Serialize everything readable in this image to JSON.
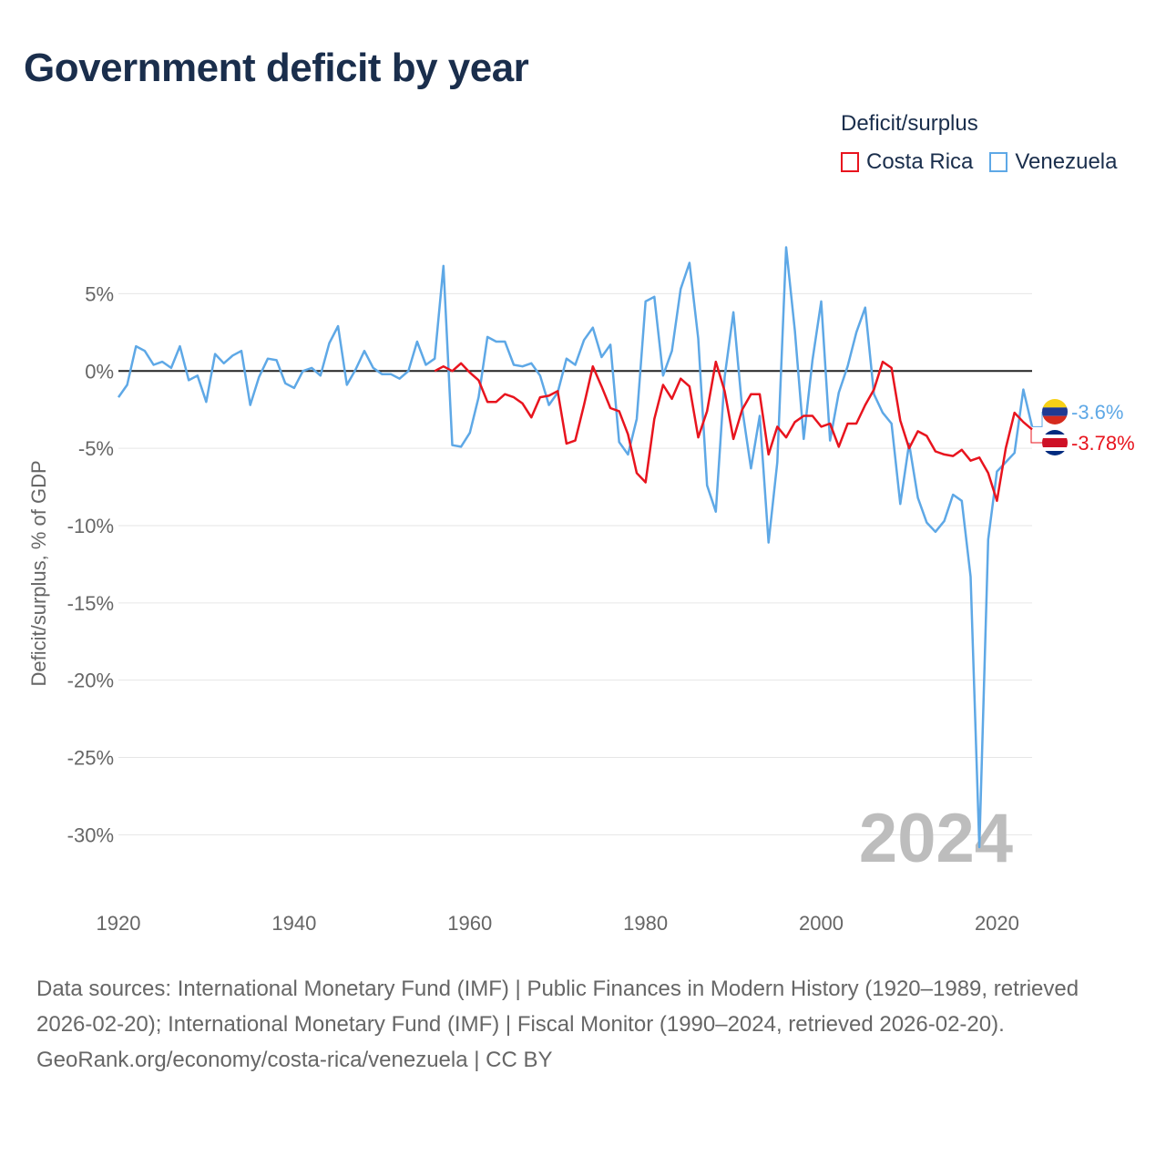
{
  "title": "Government deficit by year",
  "legend": {
    "title": "Deficit/surplus",
    "items": [
      {
        "name": "Costa Rica",
        "color": "#e8141e"
      },
      {
        "name": "Venezuela",
        "color": "#5ea8e6"
      }
    ]
  },
  "footer": {
    "sources": "Data sources: International Monetary Fund (IMF) | Public Finances in Modern History (1920–1989, retrieved 2026-02-20); International Monetary Fund (IMF) | Fiscal Monitor (1990–2024, retrieved 2026-02-20).",
    "credit": "GeoRank.org/economy/costa-rica/venezuela | CC BY"
  },
  "chart_data": {
    "type": "line",
    "title": "Government deficit by year",
    "xlabel": "",
    "ylabel": "Deficit/surplus, % of GDP",
    "xlim": [
      1920,
      2024
    ],
    "ylim": [
      -32,
      9
    ],
    "x_ticks": [
      1920,
      1940,
      1960,
      1980,
      2000,
      2020
    ],
    "y_ticks": [
      5,
      0,
      -5,
      -10,
      -15,
      -20,
      -25,
      -30
    ],
    "y_tick_labels": [
      "5%",
      "0%",
      "-5%",
      "-10%",
      "-15%",
      "-20%",
      "-25%",
      "-30%"
    ],
    "year_label": "2024",
    "series": [
      {
        "name": "Costa Rica",
        "color": "#e8141e",
        "end_label": "-3.78%",
        "x": [
          1956,
          1957,
          1958,
          1959,
          1960,
          1961,
          1962,
          1963,
          1964,
          1965,
          1966,
          1967,
          1968,
          1969,
          1970,
          1971,
          1972,
          1973,
          1974,
          1975,
          1976,
          1977,
          1978,
          1979,
          1980,
          1981,
          1982,
          1983,
          1984,
          1985,
          1986,
          1987,
          1988,
          1989,
          1990,
          1991,
          1992,
          1993,
          1994,
          1995,
          1996,
          1997,
          1998,
          1999,
          2000,
          2001,
          2002,
          2003,
          2004,
          2005,
          2006,
          2007,
          2008,
          2009,
          2010,
          2011,
          2012,
          2013,
          2014,
          2015,
          2016,
          2017,
          2018,
          2019,
          2020,
          2021,
          2022,
          2023,
          2024
        ],
        "values": [
          0.0,
          0.3,
          0.0,
          0.5,
          -0.1,
          -0.6,
          -2.0,
          -2.0,
          -1.5,
          -1.7,
          -2.1,
          -3.0,
          -1.7,
          -1.6,
          -1.3,
          -4.7,
          -4.5,
          -2.2,
          0.3,
          -1.0,
          -2.4,
          -2.6,
          -4.1,
          -6.6,
          -7.2,
          -3.1,
          -0.9,
          -1.8,
          -0.5,
          -1.0,
          -4.3,
          -2.6,
          0.6,
          -1.3,
          -4.4,
          -2.5,
          -1.5,
          -1.5,
          -5.4,
          -3.6,
          -4.3,
          -3.3,
          -2.9,
          -2.9,
          -3.6,
          -3.4,
          -4.9,
          -3.4,
          -3.4,
          -2.2,
          -1.2,
          0.6,
          0.2,
          -3.2,
          -5.0,
          -3.9,
          -4.2,
          -5.2,
          -5.4,
          -5.5,
          -5.1,
          -5.8,
          -5.6,
          -6.6,
          -8.4,
          -5.0,
          -2.7,
          -3.3,
          -3.78
        ]
      },
      {
        "name": "Venezuela",
        "color": "#5ea8e6",
        "end_label": "-3.6%",
        "x": [
          1920,
          1921,
          1922,
          1923,
          1924,
          1925,
          1926,
          1927,
          1928,
          1929,
          1930,
          1931,
          1932,
          1933,
          1934,
          1935,
          1936,
          1937,
          1938,
          1939,
          1940,
          1941,
          1942,
          1943,
          1944,
          1945,
          1946,
          1947,
          1948,
          1949,
          1950,
          1951,
          1952,
          1953,
          1954,
          1955,
          1956,
          1957,
          1958,
          1959,
          1960,
          1961,
          1962,
          1963,
          1964,
          1965,
          1966,
          1967,
          1968,
          1969,
          1970,
          1971,
          1972,
          1973,
          1974,
          1975,
          1976,
          1977,
          1978,
          1979,
          1980,
          1981,
          1982,
          1983,
          1984,
          1985,
          1986,
          1987,
          1988,
          1989,
          1990,
          1991,
          1992,
          1993,
          1994,
          1995,
          1996,
          1997,
          1998,
          1999,
          2000,
          2001,
          2002,
          2003,
          2004,
          2005,
          2006,
          2007,
          2008,
          2009,
          2010,
          2011,
          2012,
          2013,
          2014,
          2015,
          2016,
          2017,
          2018,
          2019,
          2020,
          2021,
          2022,
          2023,
          2024
        ],
        "values": [
          -1.7,
          -0.9,
          1.6,
          1.3,
          0.4,
          0.6,
          0.2,
          1.6,
          -0.6,
          -0.3,
          -2.0,
          1.1,
          0.5,
          1.0,
          1.3,
          -2.2,
          -0.4,
          0.8,
          0.7,
          -0.8,
          -1.1,
          0.0,
          0.2,
          -0.3,
          1.8,
          2.9,
          -0.9,
          0.1,
          1.3,
          0.2,
          -0.2,
          -0.2,
          -0.5,
          0.0,
          1.9,
          0.4,
          0.8,
          6.8,
          -4.8,
          -4.9,
          -4.0,
          -1.7,
          2.2,
          1.9,
          1.9,
          0.4,
          0.3,
          0.5,
          -0.3,
          -2.2,
          -1.4,
          0.8,
          0.4,
          2.0,
          2.8,
          0.9,
          1.7,
          -4.6,
          -5.4,
          -3.1,
          4.5,
          4.8,
          -0.3,
          1.3,
          5.3,
          7.0,
          2.1,
          -7.4,
          -9.1,
          -0.4,
          3.8,
          -2.4,
          -6.3,
          -2.9,
          -11.1,
          -5.9,
          8.0,
          2.6,
          -4.4,
          0.7,
          4.5,
          -4.5,
          -1.4,
          0.3,
          2.5,
          4.1,
          -1.5,
          -2.7,
          -3.4,
          -8.6,
          -4.7,
          -8.2,
          -9.8,
          -10.4,
          -9.7,
          -8.0,
          -8.4,
          -13.3,
          -30.8,
          -10.9,
          -6.5,
          -5.9,
          -5.3,
          -1.2,
          -3.6
        ]
      }
    ]
  }
}
